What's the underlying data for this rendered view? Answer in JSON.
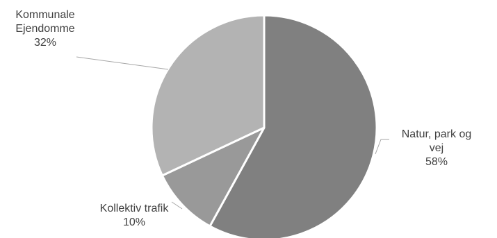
{
  "chart_data": {
    "type": "pie",
    "title": "",
    "slices": [
      {
        "name": "Natur, park og vej",
        "label_lines": [
          "Natur, park og",
          "vej"
        ],
        "value": 58,
        "value_label": "58%",
        "color": "#808080"
      },
      {
        "name": "Kollektiv trafik",
        "label_lines": [
          "Kollektiv trafik"
        ],
        "value": 10,
        "value_label": "10%",
        "color": "#999999"
      },
      {
        "name": "Kommunale Ejendomme",
        "label_lines": [
          "Kommunale",
          "Ejendomme"
        ],
        "value": 32,
        "value_label": "32%",
        "color": "#b3b3b3"
      }
    ],
    "legend": "none",
    "data_labels": "outside-with-leader-lines"
  }
}
